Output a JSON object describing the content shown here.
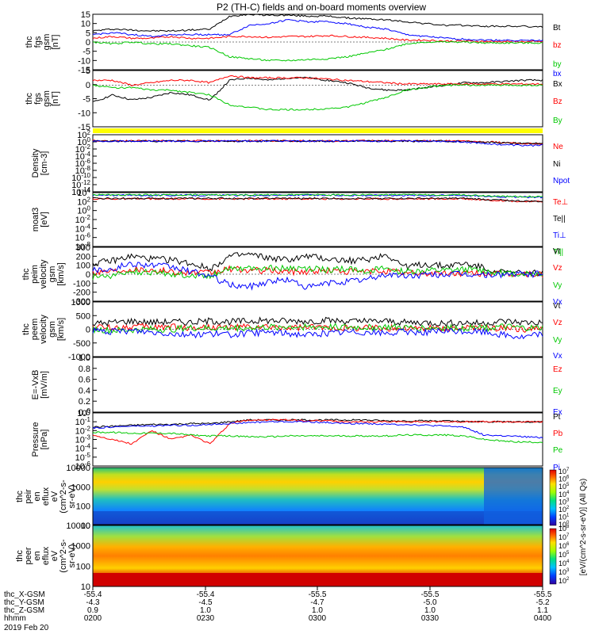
{
  "title": "P2 (TH-C) fields and on-board moments overview",
  "colorbar": {
    "label": "[eV/(cm^2-s-sr-eV)] (All Qs)",
    "ticks": [
      "10^7",
      "10^6",
      "10^5",
      "10^4",
      "10^3",
      "10^2",
      "10^1",
      "10^0"
    ],
    "ticks2": [
      "10^8",
      "10^7",
      "10^6",
      "10^5",
      "10^4",
      "10^3",
      "10^2"
    ]
  },
  "bottom_axis": {
    "rows": [
      {
        "label": "thc_X-GSM",
        "values": [
          "-55.4",
          "-55.4",
          "-55.5",
          "-55.5",
          "-55.5"
        ]
      },
      {
        "label": "thc_Y-GSM",
        "values": [
          "-4.3",
          "-4.5",
          "-4.7",
          "-5.0",
          "-5.2"
        ]
      },
      {
        "label": "thc_Z-GSM",
        "values": [
          "0.9",
          "1.0",
          "1.0",
          "1.0",
          "1.1"
        ]
      },
      {
        "label": "hhmm",
        "values": [
          "0200",
          "0230",
          "0300",
          "0330",
          "0400"
        ]
      }
    ],
    "date": "2019 Feb 20"
  },
  "chart_data": [
    {
      "type": "line",
      "ylabel": [
        "thc",
        "fgs",
        "gsm",
        "[nT]"
      ],
      "ylim": [
        -15,
        15
      ],
      "ytick_labels": [
        "15",
        "10",
        "5",
        "0",
        "-5",
        "-10",
        "-15"
      ],
      "series": [
        {
          "name": "Bt",
          "color": "#000000",
          "values": [
            6,
            7,
            6.5,
            6,
            6,
            6.5,
            7,
            14,
            15,
            14.5,
            14.5,
            14,
            14,
            13,
            12.5,
            12,
            11,
            10,
            9,
            9,
            8.5,
            8.5,
            8.5,
            8
          ]
        },
        {
          "name": "bz",
          "color": "#ff0000",
          "values": [
            2,
            3,
            2,
            2,
            3,
            2,
            2,
            3,
            3,
            2.5,
            3,
            3,
            3.5,
            3,
            2.5,
            2,
            1,
            1,
            0.5,
            0.5,
            0.3,
            0.3,
            0.2,
            0.2
          ]
        },
        {
          "name": "by",
          "color": "#00c800",
          "values": [
            0,
            -1,
            0,
            -1,
            -1,
            -2,
            -3,
            -8,
            -9,
            -10,
            -10,
            -9.5,
            -9,
            -8,
            -6,
            -4,
            -1,
            0,
            0,
            0,
            -0.5,
            -0.5,
            -0.5,
            -0.5
          ]
        },
        {
          "name": "bx",
          "color": "#0000ff",
          "values": [
            4,
            5,
            4,
            3,
            4,
            4,
            4,
            4,
            9,
            10,
            12,
            11,
            11,
            10,
            8,
            7,
            4,
            3,
            2,
            1.5,
            1,
            1,
            0.8,
            0.8
          ]
        }
      ]
    },
    {
      "type": "line",
      "ylabel": [
        "thc",
        "fgs",
        "gsm",
        "[nT]"
      ],
      "ylim": [
        -17,
        6
      ],
      "ytick_labels": [
        "5",
        "0",
        "-5",
        "-10",
        "-15"
      ],
      "series": [
        {
          "name": "Bx",
          "color": "#000000",
          "values": [
            -7,
            -4,
            -6,
            -5,
            -3,
            -4,
            -6,
            2,
            3,
            2,
            3,
            3,
            2,
            1,
            -1,
            -2,
            -2,
            -1,
            0,
            1,
            1,
            1.5,
            2,
            2
          ]
        },
        {
          "name": "Bz",
          "color": "#ff0000",
          "values": [
            2,
            2,
            0,
            1,
            2,
            2,
            1,
            4,
            3,
            3,
            3,
            3,
            2.5,
            2,
            1.5,
            1,
            0.5,
            0.5,
            0.5,
            0.5,
            0.5,
            0.5,
            0.5,
            0.5
          ]
        },
        {
          "name": "By",
          "color": "#00c800",
          "values": [
            0,
            -1,
            -1,
            -2,
            -2,
            -3,
            -4,
            -8,
            -9,
            -10,
            -10,
            -10,
            -9.5,
            -9,
            -7,
            -5,
            -2,
            -1,
            0,
            0,
            0,
            0,
            0,
            0
          ]
        }
      ]
    },
    {
      "type": "line",
      "ylabel": [
        "Density",
        "[cm-3]"
      ],
      "ylim": [
        -14,
        2
      ],
      "log": true,
      "ytick_labels": [
        "10^2",
        "10^0",
        "10^-2",
        "10^-4",
        "10^-6",
        "10^-8",
        "10^-10",
        "10^-12",
        "10^-14"
      ],
      "series": [
        {
          "name": "Ne",
          "color": "#ff0000",
          "values": [
            0.3,
            0.3,
            0.3,
            0.3,
            0.3,
            0.3,
            0.3,
            0.3,
            0.3,
            0.3,
            0.3,
            0.3,
            0.3,
            0.3,
            0.3,
            0.3,
            0.3,
            0.3,
            0.3,
            0.2,
            0,
            -0.2,
            -0.4,
            -0.5
          ]
        },
        {
          "name": "Ni",
          "color": "#000000",
          "values": [
            0.2,
            0.2,
            0.2,
            0.2,
            0.2,
            0.2,
            0.2,
            0.2,
            0.2,
            0.2,
            0.2,
            0.2,
            0.2,
            0.2,
            0.2,
            0.2,
            0.2,
            0.2,
            0.2,
            0.1,
            -0.1,
            -0.3,
            -0.4,
            -0.5
          ]
        },
        {
          "name": "Npot",
          "color": "#0000ff",
          "values": [
            0.2,
            0.2,
            0.2,
            0.2,
            0.2,
            0.2,
            0.2,
            0.2,
            0.2,
            0.2,
            0.2,
            0.2,
            0.2,
            0.2,
            0.2,
            0.2,
            0.2,
            0.2,
            0.2,
            0,
            -0.4,
            -0.8,
            -1,
            -1
          ]
        }
      ]
    },
    {
      "type": "line",
      "ylabel": [
        "moat3",
        "[eV]"
      ],
      "ylim": [
        -8,
        4
      ],
      "log": true,
      "ytick_labels": [
        "10^4",
        "10^2",
        "10^0",
        "10^-2",
        "10^-4",
        "10^-6",
        "10^-8"
      ],
      "series": [
        {
          "name": "Te⊥",
          "color": "#ff0000",
          "values": [
            2.6,
            2.6,
            2.6,
            2.6,
            2.6,
            2.6,
            2.6,
            2.6,
            2.6,
            2.6,
            2.6,
            2.6,
            2.6,
            2.6,
            2.6,
            2.6,
            2.6,
            2.6,
            2.6,
            2.6,
            2.4,
            2.2,
            2,
            2
          ]
        },
        {
          "name": "Te||",
          "color": "#000000",
          "values": [
            2.7,
            2.7,
            2.7,
            2.7,
            2.7,
            2.7,
            2.7,
            2.7,
            2.7,
            2.7,
            2.7,
            2.7,
            2.7,
            2.7,
            2.7,
            2.7,
            2.7,
            2.7,
            2.7,
            2.7,
            2.5,
            2.3,
            2.1,
            2
          ]
        },
        {
          "name": "Ti⊥",
          "color": "#0000ff",
          "values": [
            3.4,
            3.4,
            3.4,
            3.4,
            3.4,
            3.4,
            3.4,
            3.4,
            3.4,
            3.4,
            3.4,
            3.4,
            3.4,
            3.4,
            3.4,
            3.4,
            3.4,
            3.4,
            3.4,
            3.4,
            3.2,
            3.1,
            3,
            3
          ]
        },
        {
          "name": "Ti||",
          "color": "#00c800",
          "values": [
            3.5,
            3.5,
            3.5,
            3.5,
            3.5,
            3.5,
            3.5,
            3.5,
            3.5,
            3.5,
            3.5,
            3.5,
            3.5,
            3.5,
            3.5,
            3.5,
            3.5,
            3.5,
            3.5,
            3.5,
            3.3,
            3.2,
            3.1,
            3.1
          ]
        }
      ]
    },
    {
      "type": "line",
      "ylabel": [
        "thc",
        "peim",
        "velocity",
        "gsm",
        "[km/s]"
      ],
      "ylim": [
        -300,
        300
      ],
      "ytick_labels": [
        "300",
        "200",
        "100",
        "0",
        "-100",
        "-200",
        "-300"
      ],
      "series": [
        {
          "name": "Vt",
          "color": "#000000",
          "values": [
            120,
            150,
            200,
            170,
            160,
            120,
            60,
            200,
            220,
            180,
            160,
            200,
            170,
            150,
            160,
            220,
            80,
            110,
            90,
            120,
            70,
            20,
            15,
            15
          ]
        },
        {
          "name": "Vz",
          "color": "#ff0000",
          "values": [
            20,
            40,
            60,
            50,
            30,
            20,
            10,
            60,
            40,
            40,
            30,
            30,
            40,
            30,
            30,
            40,
            10,
            10,
            10,
            10,
            10,
            0,
            0,
            0
          ]
        },
        {
          "name": "Vy",
          "color": "#00c800",
          "values": [
            -30,
            -20,
            30,
            20,
            0,
            -10,
            -20,
            80,
            60,
            70,
            60,
            60,
            50,
            60,
            40,
            60,
            30,
            40,
            40,
            50,
            40,
            10,
            10,
            10
          ]
        },
        {
          "name": "Vx",
          "color": "#0000ff",
          "values": [
            50,
            60,
            120,
            100,
            80,
            30,
            -20,
            -120,
            -140,
            -80,
            -60,
            -150,
            -100,
            -80,
            -60,
            0,
            -20,
            -10,
            0,
            0,
            -10,
            0,
            0,
            0
          ]
        }
      ]
    },
    {
      "type": "line",
      "ylabel": [
        "thc",
        "peem",
        "velocity",
        "gsm",
        "[km/s]"
      ],
      "ylim": [
        -1000,
        1000
      ],
      "ytick_labels": [
        "1000",
        "500",
        "0",
        "-500",
        "-1000"
      ],
      "series": [
        {
          "name": "Vt",
          "color": "#000000",
          "values": [
            200,
            250,
            300,
            250,
            280,
            250,
            300,
            280,
            300,
            320,
            300,
            300,
            320,
            300,
            280,
            300,
            250,
            250,
            220,
            250,
            220,
            300,
            250,
            250
          ]
        },
        {
          "name": "Vz",
          "color": "#ff0000",
          "values": [
            100,
            50,
            100,
            80,
            100,
            50,
            80,
            60,
            80,
            60,
            50,
            60,
            70,
            50,
            60,
            50,
            40,
            40,
            40,
            50,
            40,
            50,
            0,
            0
          ]
        },
        {
          "name": "Vy",
          "color": "#00c800",
          "values": [
            0,
            -50,
            -30,
            0,
            0,
            50,
            30,
            50,
            60,
            80,
            100,
            80,
            90,
            80,
            70,
            90,
            60,
            60,
            50,
            50,
            40,
            100,
            50,
            50
          ]
        },
        {
          "name": "Vx",
          "color": "#0000ff",
          "values": [
            -50,
            -100,
            -50,
            -100,
            -150,
            -200,
            -150,
            -200,
            -150,
            -100,
            -150,
            -200,
            -150,
            -100,
            -100,
            -150,
            -100,
            -100,
            -80,
            -80,
            -100,
            -200,
            -300,
            -150
          ]
        }
      ]
    },
    {
      "type": "line",
      "ylabel": [
        "E=-VxB",
        "[mV/m]"
      ],
      "ylim": [
        0,
        1
      ],
      "ytick_labels": [
        "1.0",
        "0.8",
        "0.6",
        "0.4",
        "0.2",
        "0.0"
      ],
      "series": [
        {
          "name": "Ez",
          "color": "#ff0000",
          "values": []
        },
        {
          "name": "Ey",
          "color": "#00c800",
          "values": []
        },
        {
          "name": "Ex",
          "color": "#0000ff",
          "values": []
        }
      ]
    },
    {
      "type": "line",
      "ylabel": [
        "Pressure",
        "[nPa]"
      ],
      "ylim": [
        -6,
        0
      ],
      "log": true,
      "ytick_labels": [
        "10^0",
        "10^-1",
        "10^-2",
        "10^-3",
        "10^-4",
        "10^-5",
        "10^-6"
      ],
      "series": [
        {
          "name": "Pt",
          "color": "#000000",
          "values": [
            -1.6,
            -1.5,
            -1.4,
            -1.3,
            -1.3,
            -1.2,
            -1.2,
            -1,
            -0.8,
            -0.8,
            -0.8,
            -0.8,
            -0.8,
            -0.8,
            -0.8,
            -0.9,
            -0.9,
            -0.9,
            -0.9,
            -1,
            -1,
            -1,
            -1,
            -1
          ]
        },
        {
          "name": "Pb",
          "color": "#ff0000",
          "values": [
            -2.5,
            -3,
            -3.5,
            -2,
            -3,
            -2.5,
            -3.5,
            -1.2,
            -0.8,
            -0.8,
            -0.8,
            -0.9,
            -0.9,
            -1,
            -1,
            -1,
            -1,
            -1,
            -1,
            -1,
            -1,
            -1,
            -1,
            -1
          ]
        },
        {
          "name": "Pe",
          "color": "#00c800",
          "values": [
            -2.2,
            -2.2,
            -2.3,
            -2.3,
            -2.3,
            -2.5,
            -2.6,
            -2.6,
            -2.7,
            -2.7,
            -2.6,
            -2.6,
            -2.6,
            -2.6,
            -2.6,
            -2.6,
            -2.5,
            -2.5,
            -2.5,
            -2.6,
            -3,
            -3.2,
            -3.3,
            -3.3
          ]
        },
        {
          "name": "Pi",
          "color": "#0000ff",
          "values": [
            -1.7,
            -1.6,
            -1.5,
            -1.5,
            -1.4,
            -1.4,
            -1.3,
            -1.2,
            -1.1,
            -1,
            -1,
            -1,
            -1.1,
            -1.2,
            -1.2,
            -1.3,
            -1.3,
            -1.4,
            -1.5,
            -1.6,
            -2.5,
            -2.6,
            -2.7,
            -2.8
          ]
        }
      ]
    },
    {
      "type": "heatmap",
      "ylabel": [
        "thc",
        "peir",
        "en",
        "eflux",
        "eV",
        "(cm^2-s-",
        "sr-eV)"
      ],
      "ytick_labels": [
        "10000",
        "1000",
        "100",
        "10"
      ]
    },
    {
      "type": "heatmap",
      "ylabel": [
        "thc",
        "peer",
        "en",
        "eflux",
        "eV",
        "(cm^2-s-",
        "sr-eV)"
      ],
      "ytick_labels": [
        "10000",
        "1000",
        "100",
        "10"
      ]
    }
  ]
}
